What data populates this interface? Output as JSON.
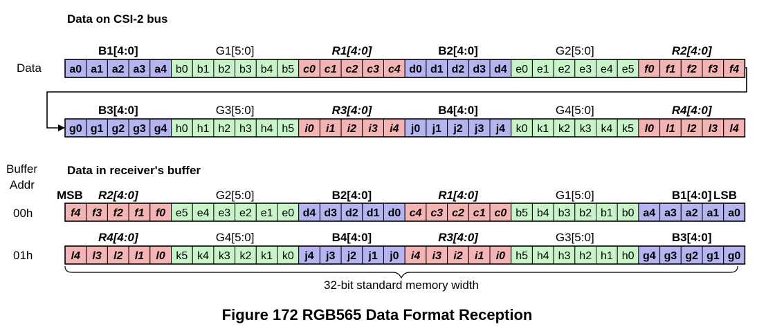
{
  "section_bus": "Data on CSI-2 bus",
  "section_buffer": "Data in receiver's buffer",
  "label_data": "Data",
  "label_buffer_addr_1": "Buffer",
  "label_buffer_addr_2": "Addr",
  "label_msb": "MSB",
  "label_lsb": "LSB",
  "width_note": "32-bit standard memory width",
  "caption": "Figure 172 RGB565 Data Format Reception",
  "colors": {
    "blue": "#b4b4f0",
    "green": "#c8f5c8",
    "red": "#f5b4b4"
  },
  "bus_rows": [
    {
      "groups": [
        {
          "label": "B1[4:0]",
          "color": "blue",
          "style": "bold",
          "cells": [
            "a0",
            "a1",
            "a2",
            "a3",
            "a4"
          ]
        },
        {
          "label": "G1[5:0]",
          "color": "green",
          "style": "normal",
          "cells": [
            "b0",
            "b1",
            "b2",
            "b3",
            "b4",
            "b5"
          ]
        },
        {
          "label": "R1[4:0]",
          "color": "red",
          "style": "bolditalic",
          "cells": [
            "c0",
            "c1",
            "c2",
            "c3",
            "c4"
          ]
        },
        {
          "label": "B2[4:0]",
          "color": "blue",
          "style": "bold",
          "cells": [
            "d0",
            "d1",
            "d2",
            "d3",
            "d4"
          ]
        },
        {
          "label": "G2[5:0]",
          "color": "green",
          "style": "normal",
          "cells": [
            "e0",
            "e1",
            "e2",
            "e3",
            "e4",
            "e5"
          ]
        },
        {
          "label": "R2[4:0]",
          "color": "red",
          "style": "bolditalic",
          "cells": [
            "f0",
            "f1",
            "f2",
            "f3",
            "f4"
          ]
        }
      ]
    },
    {
      "groups": [
        {
          "label": "B3[4:0]",
          "color": "blue",
          "style": "bold",
          "cells": [
            "g0",
            "g1",
            "g2",
            "g3",
            "g4"
          ]
        },
        {
          "label": "G3[5:0]",
          "color": "green",
          "style": "normal",
          "cells": [
            "h0",
            "h1",
            "h2",
            "h3",
            "h4",
            "h5"
          ]
        },
        {
          "label": "R3[4:0]",
          "color": "red",
          "style": "bolditalic",
          "cells": [
            "i0",
            "i1",
            "i2",
            "i3",
            "i4"
          ]
        },
        {
          "label": "B4[4:0]",
          "color": "blue",
          "style": "bold",
          "cells": [
            "j0",
            "j1",
            "j2",
            "j3",
            "j4"
          ]
        },
        {
          "label": "G4[5:0]",
          "color": "green",
          "style": "normal",
          "cells": [
            "k0",
            "k1",
            "k2",
            "k3",
            "k4",
            "k5"
          ]
        },
        {
          "label": "R4[4:0]",
          "color": "red",
          "style": "bolditalic",
          "cells": [
            "l0",
            "l1",
            "l2",
            "l3",
            "l4"
          ]
        }
      ]
    }
  ],
  "buffer_rows": [
    {
      "addr": "00h",
      "groups": [
        {
          "label": "R2[4:0]",
          "color": "red",
          "style": "bolditalic",
          "cells": [
            "f4",
            "f3",
            "f2",
            "f1",
            "f0"
          ]
        },
        {
          "label": "G2[5:0]",
          "color": "green",
          "style": "normal",
          "cells": [
            "e5",
            "e4",
            "e3",
            "e2",
            "e1",
            "e0"
          ]
        },
        {
          "label": "B2[4:0]",
          "color": "blue",
          "style": "bold",
          "cells": [
            "d4",
            "d3",
            "d2",
            "d1",
            "d0"
          ]
        },
        {
          "label": "R1[4:0]",
          "color": "red",
          "style": "bolditalic",
          "cells": [
            "c4",
            "c3",
            "c2",
            "c1",
            "c0"
          ]
        },
        {
          "label": "G1[5:0]",
          "color": "green",
          "style": "normal",
          "cells": [
            "b5",
            "b4",
            "b3",
            "b2",
            "b1",
            "b0"
          ]
        },
        {
          "label": "B1[4:0]",
          "color": "blue",
          "style": "bold",
          "cells": [
            "a4",
            "a3",
            "a2",
            "a1",
            "a0"
          ]
        }
      ]
    },
    {
      "addr": "01h",
      "groups": [
        {
          "label": "R4[4:0]",
          "color": "red",
          "style": "bolditalic",
          "cells": [
            "l4",
            "l3",
            "l2",
            "l1",
            "l0"
          ]
        },
        {
          "label": "G4[5:0]",
          "color": "green",
          "style": "normal",
          "cells": [
            "k5",
            "k4",
            "k3",
            "k2",
            "k1",
            "k0"
          ]
        },
        {
          "label": "B4[4:0]",
          "color": "blue",
          "style": "bold",
          "cells": [
            "j4",
            "j3",
            "j2",
            "j1",
            "j0"
          ]
        },
        {
          "label": "R3[4:0]",
          "color": "red",
          "style": "bolditalic",
          "cells": [
            "i4",
            "i3",
            "i2",
            "i1",
            "i0"
          ]
        },
        {
          "label": "G3[5:0]",
          "color": "green",
          "style": "normal",
          "cells": [
            "h5",
            "h4",
            "h3",
            "h2",
            "h1",
            "h0"
          ]
        },
        {
          "label": "B3[4:0]",
          "color": "blue",
          "style": "bold",
          "cells": [
            "g4",
            "g3",
            "g2",
            "g1",
            "g0"
          ]
        }
      ]
    }
  ]
}
